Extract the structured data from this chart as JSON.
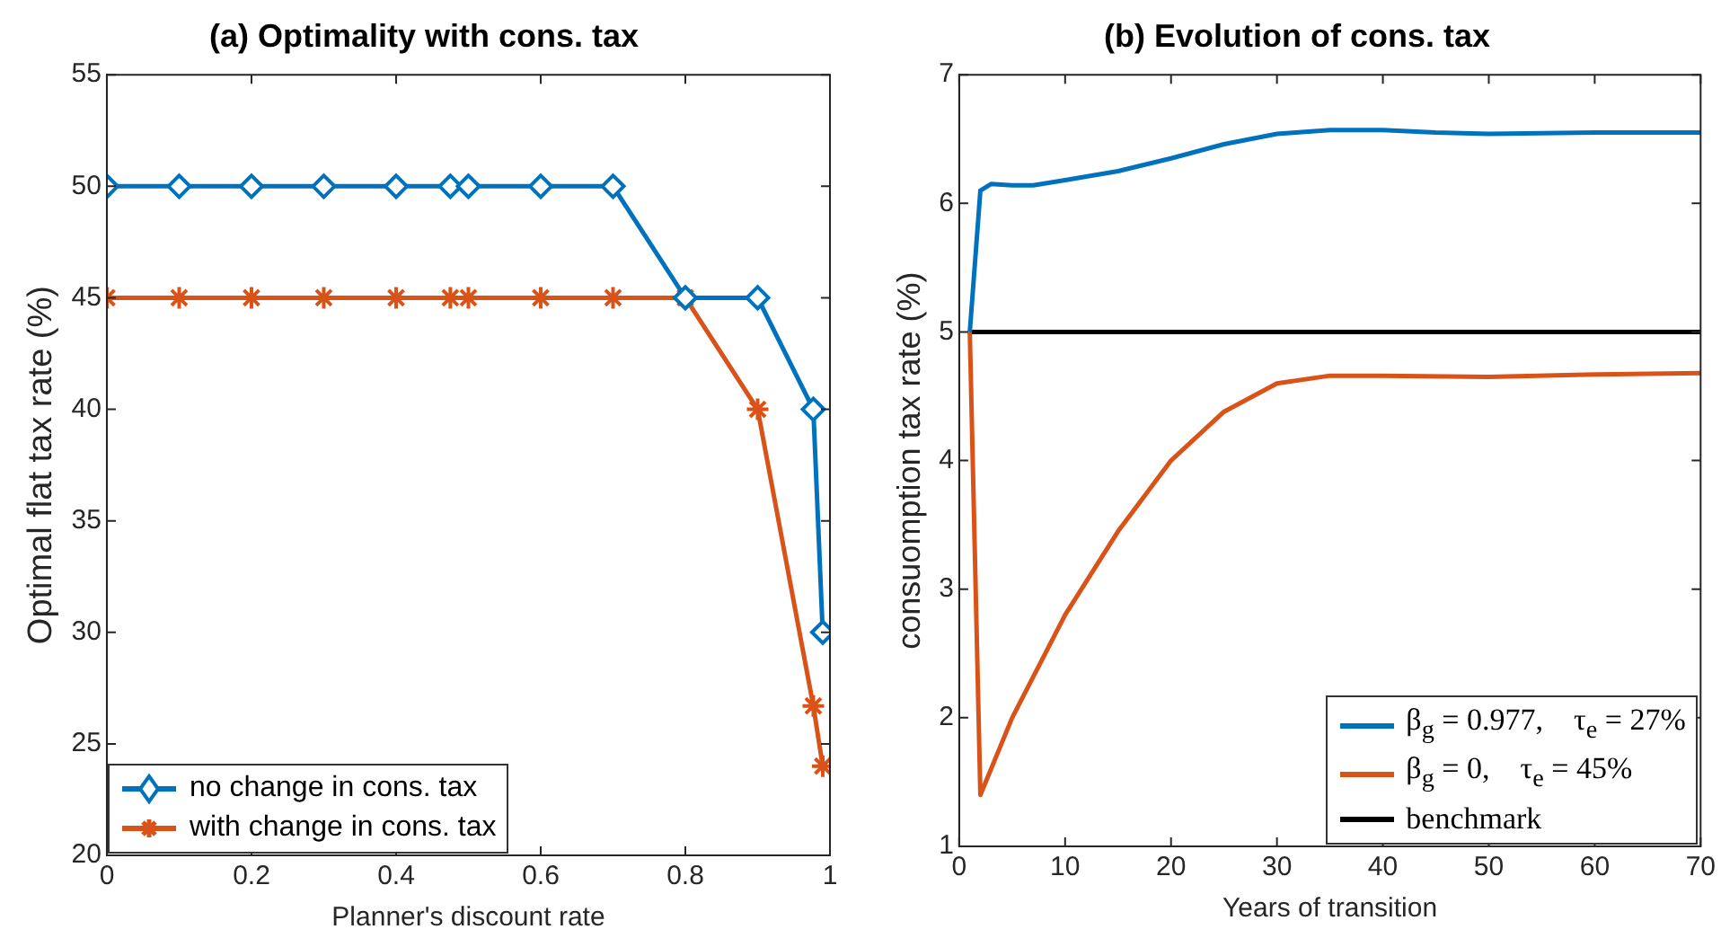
{
  "chart_data": [
    {
      "type": "line",
      "title": "(a) Optimality with cons. tax",
      "xlabel": "Planner's discount rate",
      "ylabel": "Optimal flat tax rate (%)",
      "xlim": [
        0,
        1
      ],
      "xticks": [
        0,
        0.2,
        0.4,
        0.6,
        0.8,
        1
      ],
      "ylim": [
        20,
        55
      ],
      "yticks": [
        20,
        25,
        30,
        35,
        40,
        45,
        50,
        55
      ],
      "grid": false,
      "legend": "bottom left",
      "series": [
        {
          "name": "no change in cons. tax",
          "color": "#0072bd",
          "marker": "diamond",
          "x": [
            0,
            0.1,
            0.2,
            0.3,
            0.4,
            0.475,
            0.5,
            0.6,
            0.7,
            0.8,
            0.9,
            0.977,
            0.99
          ],
          "values": [
            50,
            50,
            50,
            50,
            50,
            50,
            50,
            50,
            50,
            45,
            45,
            40,
            30
          ]
        },
        {
          "name": "with change in cons. tax",
          "color": "#d95319",
          "marker": "cross",
          "x": [
            0,
            0.1,
            0.2,
            0.3,
            0.4,
            0.475,
            0.5,
            0.6,
            0.7,
            0.8,
            0.9,
            0.977,
            0.99
          ],
          "values": [
            45,
            45,
            45,
            45,
            45,
            45,
            45,
            45,
            45,
            45,
            40,
            26.7,
            24
          ]
        }
      ]
    },
    {
      "type": "line",
      "title": "(b) Evolution of cons. tax",
      "xlabel": "Years of transition",
      "ylabel": "consuomption tax rate (%)",
      "xlim": [
        0,
        70
      ],
      "xticks": [
        0,
        10,
        20,
        30,
        40,
        50,
        60,
        70
      ],
      "ylim": [
        1,
        7
      ],
      "yticks": [
        1,
        2,
        3,
        4,
        5,
        6,
        7
      ],
      "grid": false,
      "legend": "bottom right",
      "marker": "none",
      "series": [
        {
          "name": "β$_{g}$ = 0.977,    τ$_{e}$ = 27%",
          "color": "#0072bd",
          "x": [
            1,
            2,
            3,
            5,
            7,
            10,
            15,
            20,
            25,
            30,
            35,
            40,
            45,
            50,
            60,
            70
          ],
          "values": [
            5,
            6.1,
            6.15,
            6.14,
            6.14,
            6.18,
            6.25,
            6.35,
            6.46,
            6.54,
            6.57,
            6.57,
            6.55,
            6.54,
            6.55,
            6.55
          ]
        },
        {
          "name": "β$_{g}$ = 0,    τ$_{e}$ = 45%",
          "color": "#d95319",
          "x": [
            1,
            2,
            5,
            10,
            15,
            20,
            25,
            30,
            35,
            40,
            50,
            60,
            70
          ],
          "values": [
            5,
            1.4,
            2.0,
            2.8,
            3.45,
            4.0,
            4.38,
            4.6,
            4.66,
            4.66,
            4.65,
            4.67,
            4.68
          ]
        },
        {
          "name": "benchmark",
          "color": "#000000",
          "x": [
            1,
            70
          ],
          "values": [
            5,
            5
          ]
        }
      ]
    }
  ]
}
